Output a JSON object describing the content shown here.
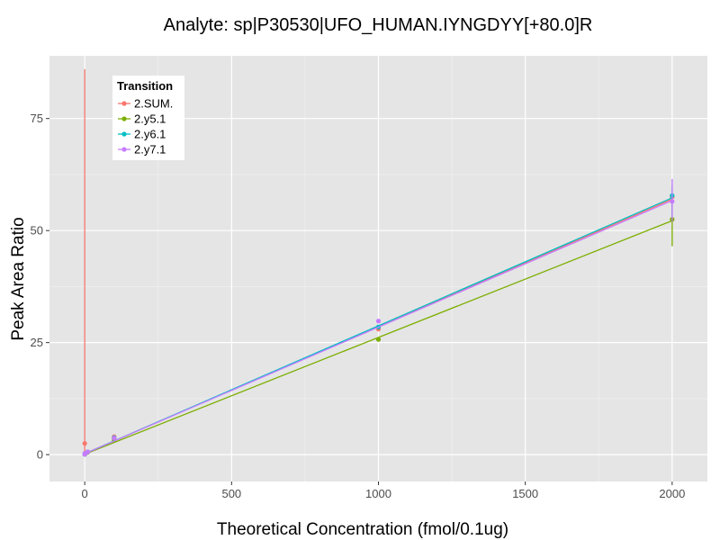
{
  "chart_data": {
    "type": "line",
    "title": "Analyte: sp|P30530|UFO_HUMAN.IYNGDYY[+80.0]R",
    "xlabel": "Theoretical Concentration (fmol/0.1ug)",
    "ylabel": "Peak Area Ratio",
    "xlim": [
      -120,
      2120
    ],
    "ylim": [
      -6,
      89
    ],
    "xticks": [
      0,
      500,
      1000,
      1500,
      2000
    ],
    "xtick_labels": [
      "0",
      "500",
      "1000",
      "1500",
      "2000"
    ],
    "yticks": [
      0,
      25,
      50,
      75
    ],
    "ytick_labels": [
      "0",
      "25",
      "50",
      "75"
    ],
    "grid": true,
    "legend": {
      "title": "Transition",
      "placement": "top-left"
    },
    "series": [
      {
        "name": "2.SUM.",
        "color": "#F8766D",
        "x": [
          0,
          0.1,
          1,
          10,
          100,
          1000,
          2000
        ],
        "y": [
          2.5,
          0.1,
          0.3,
          0.6,
          4.0,
          28.0,
          57.5
        ],
        "fit": [
          [
            0,
            0.2
          ],
          [
            2000,
            57.0
          ]
        ],
        "errorbars": [
          {
            "x": 0,
            "low": 0,
            "high": 86
          }
        ]
      },
      {
        "name": "2.y5.1",
        "color": "#7CAE00",
        "x": [
          0,
          0.1,
          1,
          10,
          100,
          1000,
          2000
        ],
        "y": [
          0.1,
          0.1,
          0.2,
          0.5,
          3.3,
          25.7,
          52.5
        ],
        "fit": [
          [
            0,
            0.1
          ],
          [
            2000,
            52.2
          ]
        ],
        "errorbars": [
          {
            "x": 2000,
            "low": 46.5,
            "high": 57.5
          }
        ]
      },
      {
        "name": "2.y6.1",
        "color": "#00BFC4",
        "x": [
          0,
          0.1,
          1,
          10,
          100,
          1000,
          2000
        ],
        "y": [
          0.1,
          0.1,
          0.3,
          0.6,
          3.8,
          28.5,
          57.8
        ],
        "fit": [
          [
            0,
            0.2
          ],
          [
            2000,
            57.3
          ]
        ],
        "errorbars": [
          {
            "x": 2000,
            "low": 53.0,
            "high": 60.0
          }
        ]
      },
      {
        "name": "2.y7.1",
        "color": "#C77CFF",
        "x": [
          0,
          0.1,
          1,
          10,
          100,
          1000,
          2000
        ],
        "y": [
          0.1,
          0.1,
          0.3,
          0.6,
          3.7,
          29.8,
          56.5
        ],
        "fit": [
          [
            0,
            0.2
          ],
          [
            2000,
            56.7
          ]
        ],
        "errorbars": [
          {
            "x": 2000,
            "low": 52.0,
            "high": 61.5
          }
        ]
      }
    ]
  }
}
